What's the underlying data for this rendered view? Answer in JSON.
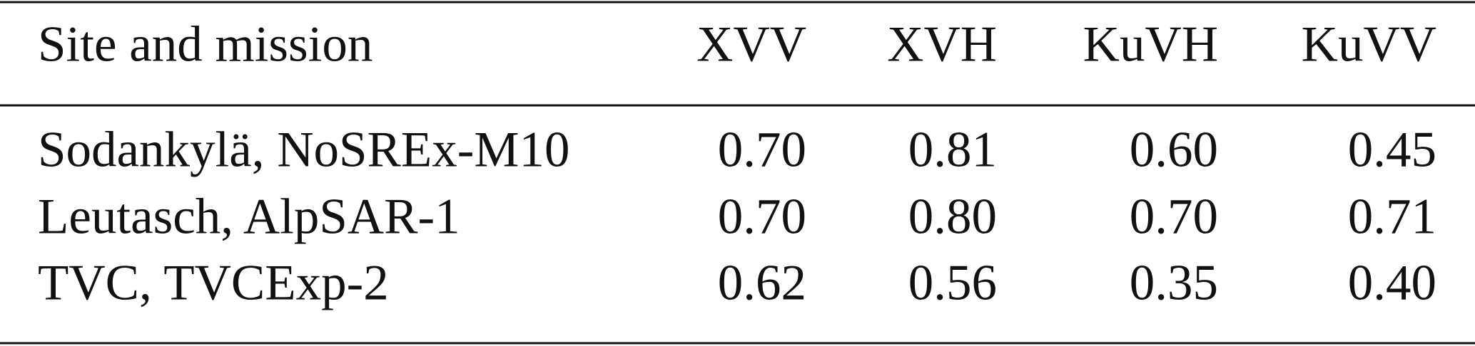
{
  "table": {
    "header": [
      "Site and mission",
      "XVV",
      "XVH",
      "KuVH",
      "KuVV"
    ],
    "rows": [
      [
        "Sodankylä, NoSREx-M10",
        "0.70",
        "0.81",
        "0.60",
        "0.45"
      ],
      [
        "Leutasch, AlpSAR-1",
        "0.70",
        "0.80",
        "0.70",
        "0.71"
      ],
      [
        "TVC, TVCExp-2",
        "0.62",
        "0.56",
        "0.35",
        "0.40"
      ]
    ]
  }
}
